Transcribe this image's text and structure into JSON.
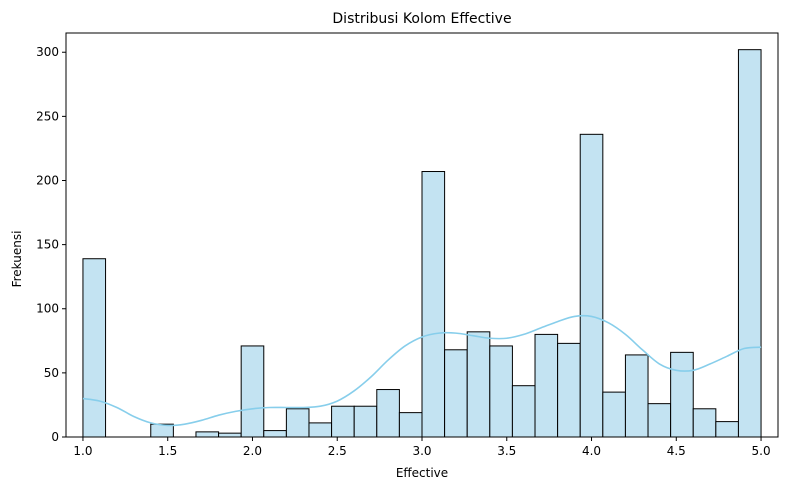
{
  "chart_data": {
    "type": "bar",
    "subtype": "histogram-with-kde",
    "title": "Distribusi Kolom Effective",
    "xlabel": "Effective",
    "ylabel": "Frekuensi",
    "xlim": [
      0.9,
      5.1
    ],
    "ylim": [
      0,
      315
    ],
    "xticks": [
      1.0,
      1.5,
      2.0,
      2.5,
      3.0,
      3.5,
      4.0,
      4.5,
      5.0
    ],
    "xtick_labels": [
      "1.0",
      "1.5",
      "2.0",
      "2.5",
      "3.0",
      "3.5",
      "4.0",
      "4.5",
      "5.0"
    ],
    "yticks": [
      0,
      50,
      100,
      150,
      200,
      250,
      300
    ],
    "ytick_labels": [
      "0",
      "50",
      "100",
      "150",
      "200",
      "250",
      "300"
    ],
    "bins": {
      "start": 1.0,
      "end": 5.0,
      "count": 30,
      "values": [
        139,
        0,
        0,
        10,
        0,
        4,
        3,
        71,
        5,
        22,
        11,
        24,
        24,
        37,
        19,
        207,
        68,
        82,
        71,
        40,
        80,
        73,
        236,
        35,
        64,
        26,
        66,
        22,
        12,
        302
      ]
    },
    "kde": {
      "x": [
        1.0,
        1.1,
        1.2,
        1.3,
        1.4,
        1.5,
        1.6,
        1.7,
        1.8,
        1.9,
        2.0,
        2.1,
        2.2,
        2.3,
        2.4,
        2.5,
        2.6,
        2.7,
        2.8,
        2.9,
        3.0,
        3.1,
        3.2,
        3.3,
        3.4,
        3.5,
        3.6,
        3.7,
        3.8,
        3.9,
        4.0,
        4.1,
        4.2,
        4.3,
        4.4,
        4.5,
        4.6,
        4.7,
        4.8,
        4.9,
        5.0
      ],
      "y": [
        30,
        28,
        23,
        16,
        11,
        9,
        10,
        13,
        17,
        20,
        22,
        23,
        23,
        23,
        24,
        28,
        36,
        47,
        60,
        71,
        78,
        81,
        81,
        79,
        77,
        77,
        80,
        85,
        90,
        94,
        94,
        89,
        80,
        68,
        57,
        52,
        52,
        57,
        63,
        69,
        70
      ]
    },
    "colors": {
      "bar_fill": "#c3e3f2",
      "bar_edge": "#000000",
      "kde_line": "#87ceeb"
    },
    "grid": false,
    "legend": "none"
  }
}
